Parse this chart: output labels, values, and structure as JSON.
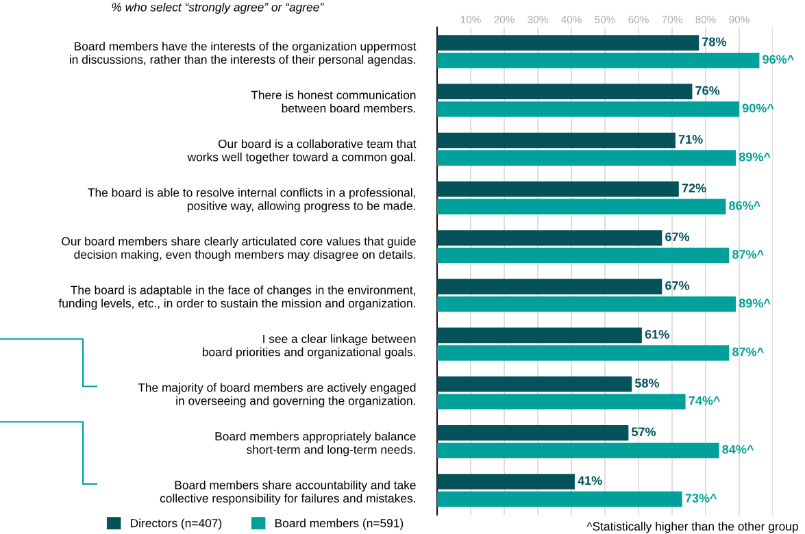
{
  "chart_data": {
    "type": "bar",
    "orientation": "horizontal",
    "subtitle": "% who select “strongly agree” or “agree”",
    "categories": [
      "Board members have the interests of the organization uppermost\nin discussions, rather than the interests of their personal agendas.",
      "There is honest communication\nbetween board members.",
      "Our board is a collaborative team that\nworks well together toward a common goal.",
      "The board is able to resolve internal conflicts in a professional,\npositive way, allowing progress to be made.",
      "Our board members share clearly articulated core values that guide\ndecision making, even though members may disagree on details.",
      "The board is adaptable in the face of changes in the environment,\nfunding levels, etc., in order to sustain the mission and organization.",
      "I see a clear linkage between\nboard priorities and organizational goals.",
      "The majority of board members are actively engaged\nin overseeing and governing the organization.",
      "Board members appropriately balance\nshort-term and long-term needs.",
      "Board members share accountability and take\ncollective responsibility for failures and mistakes."
    ],
    "series": [
      {
        "name": "Directors (n=407)",
        "color": "#04525a",
        "values": [
          78,
          76,
          71,
          72,
          67,
          67,
          61,
          58,
          57,
          41
        ],
        "value_labels": [
          "78%",
          "76%",
          "71%",
          "72%",
          "67%",
          "67%",
          "61%",
          "58%",
          "57%",
          "41%"
        ]
      },
      {
        "name": "Board members (n=591)",
        "color": "#00a19a",
        "values": [
          96,
          90,
          89,
          86,
          87,
          89,
          87,
          74,
          84,
          73
        ],
        "value_labels": [
          "96%^",
          "90%^",
          "89%^",
          "86%^",
          "87%^",
          "89%^",
          "87%^",
          "74%^",
          "84%^",
          "73%^"
        ]
      }
    ],
    "xlim": [
      0,
      100
    ],
    "xticks": [
      {
        "value": 10,
        "label": "10%"
      },
      {
        "value": 20,
        "label": "20%"
      },
      {
        "value": 30,
        "label": "30%"
      },
      {
        "value": 40,
        "label": "40%"
      },
      {
        "value": 50,
        "label": "50%"
      },
      {
        "value": 60,
        "label": "60%"
      },
      {
        "value": 70,
        "label": "70%"
      },
      {
        "value": 80,
        "label": "80%"
      },
      {
        "value": 90,
        "label": "90%"
      },
      {
        "value": 100,
        "label": null
      }
    ],
    "grid": "x",
    "legend": "bottom left",
    "annotations": [
      "^Statistically higher than the other group"
    ]
  }
}
